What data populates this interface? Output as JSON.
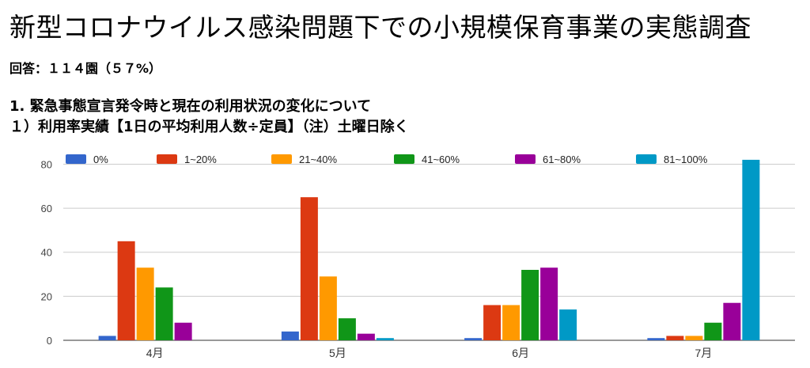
{
  "title": "新型コロナウイルス感染問題下での小規模保育事業の実態調査",
  "responses": "回答：１１４園（５７%）",
  "question": "1.  緊急事態宣言発令時と現在の利用状況の変化について",
  "subquestion": " １）利用率実績【1日の平均利用人数÷定員】（注）土曜日除く",
  "chart_data": {
    "type": "bar",
    "categories": [
      "4月",
      "5月",
      "6月",
      "7月"
    ],
    "series": [
      {
        "name": "0%",
        "color": "#3366cc",
        "values": [
          2,
          4,
          1,
          1
        ]
      },
      {
        "name": "1~20%",
        "color": "#dc3912",
        "values": [
          45,
          65,
          16,
          2
        ]
      },
      {
        "name": "21~40%",
        "color": "#ff9900",
        "values": [
          33,
          29,
          16,
          2
        ]
      },
      {
        "name": "41~60%",
        "color": "#109618",
        "values": [
          24,
          10,
          32,
          8
        ]
      },
      {
        "name": "61~80%",
        "color": "#990099",
        "values": [
          8,
          3,
          33,
          17
        ]
      },
      {
        "name": "81~100%",
        "color": "#0099c6",
        "values": [
          0,
          1,
          14,
          82
        ]
      }
    ],
    "yticks": [
      0,
      20,
      40,
      60,
      80
    ],
    "ylim": [
      0,
      87
    ],
    "grid": true,
    "legend_position": "top"
  }
}
